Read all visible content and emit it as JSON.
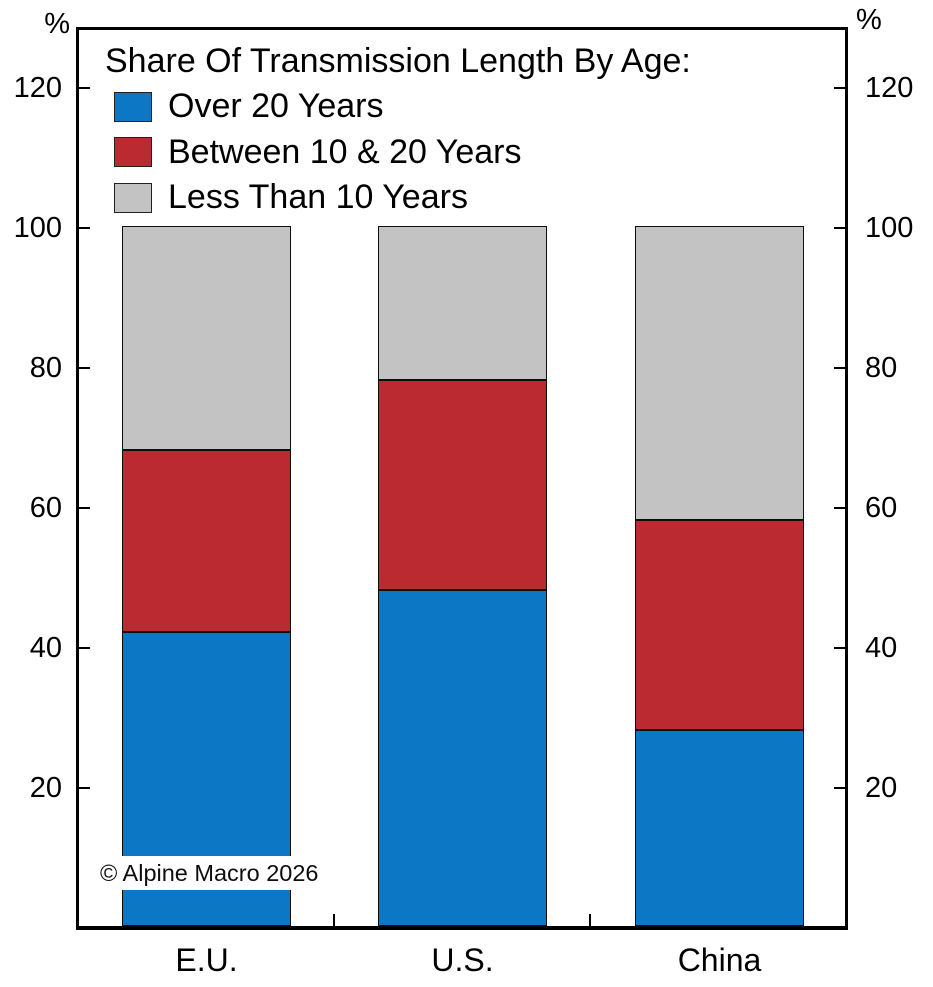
{
  "chart_data": {
    "type": "bar",
    "stacked": true,
    "legend_title": "Share Of Transmission Length By Age:",
    "categories": [
      "E.U.",
      "U.S.",
      "China"
    ],
    "series": [
      {
        "name": "Over 20 Years",
        "color": "#0b77c5",
        "values": [
          42,
          48,
          28
        ]
      },
      {
        "name": "Between 10 & 20 Years",
        "color": "#bc2a31",
        "values": [
          26,
          30,
          30
        ]
      },
      {
        "name": "Less Than 10 Years",
        "color": "#c3c3c3",
        "values": [
          32,
          22,
          42
        ]
      }
    ],
    "y_unit": "%",
    "y_ticks": [
      20,
      40,
      60,
      80,
      100,
      120
    ],
    "ylim": [
      0,
      128.5
    ],
    "bar_totals": [
      100,
      100,
      100
    ],
    "grid": false,
    "legend_position": "top-left",
    "bar_edge_color": "#000000"
  },
  "footer": {
    "copyright": "© Alpine Macro 2026"
  }
}
